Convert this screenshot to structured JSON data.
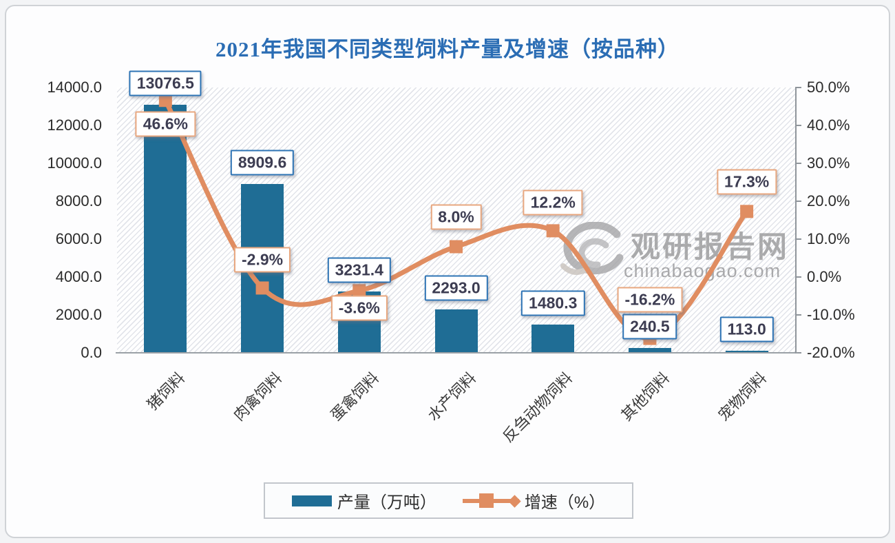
{
  "page": {
    "title": "2021年我国不同类型饲料产量及增速（按品种）"
  },
  "watermark": {
    "brand": "观研报告网",
    "domain": "chinabaogao.com"
  },
  "colors": {
    "bar": "#1f6d95",
    "line": "#e08d61",
    "bar_label_border": "#2e74b5",
    "line_label_border": "#e8a77f",
    "title": "#2b6db4",
    "watermark_gray": "#9a9a9c"
  },
  "chart_data": {
    "type": "bar+line combo, dual axis",
    "title": "2021年我国不同类型饲料产量及增速（按品种）",
    "categories": [
      "猪饲料",
      "肉禽饲料",
      "蛋禽饲料",
      "水产饲料",
      "反刍动物饲料",
      "其他饲料",
      "宠物饲料"
    ],
    "series": [
      {
        "name": "产量（万吨）",
        "type": "bar",
        "axis": "left",
        "values": [
          13076.5,
          8909.6,
          3231.4,
          2293.0,
          1480.3,
          240.5,
          113.0
        ],
        "labels": [
          "13076.5",
          "8909.6",
          "3231.4",
          "2293.0",
          "1480.3",
          "240.5",
          "113.0"
        ]
      },
      {
        "name": "增速（%）",
        "type": "line",
        "axis": "right",
        "values": [
          46.6,
          -2.9,
          -3.6,
          8.0,
          12.2,
          -16.2,
          17.3
        ],
        "labels": [
          "46.6%",
          "-2.9%",
          "-3.6%",
          "8.0%",
          "12.2%",
          "-16.2%",
          "17.3%"
        ]
      }
    ],
    "left_axis": {
      "min": 0,
      "max": 14000,
      "tick_labels": [
        "14000.0",
        "12000.0",
        "10000.0",
        "8000.0",
        "6000.0",
        "4000.0",
        "2000.0",
        "0.0"
      ]
    },
    "right_axis": {
      "min": -20,
      "max": 50,
      "tick_labels": [
        "50.0%",
        "40.0%",
        "30.0%",
        "20.0%",
        "10.0%",
        "0.0%",
        "-10.0%",
        "-20.0%"
      ]
    },
    "grid": false,
    "legend_position": "bottom",
    "label_layout": {
      "bar_label_offset": -31,
      "line_label_offsets": [
        34,
        -41,
        25,
        -43,
        -41,
        -56,
        -43
      ]
    }
  }
}
